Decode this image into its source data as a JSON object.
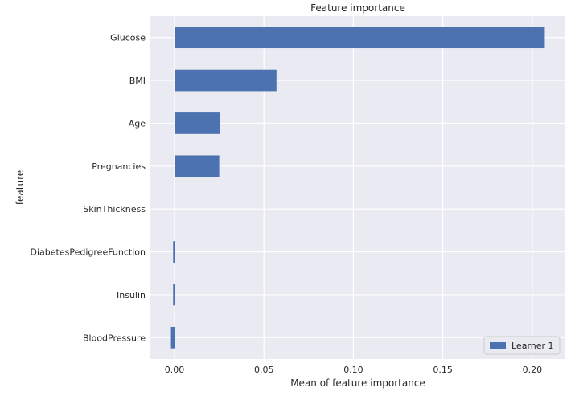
{
  "chart_data": {
    "type": "bar",
    "orientation": "horizontal",
    "title": "Feature importance",
    "xlabel": "Mean of feature importance",
    "ylabel": "feature",
    "categories": [
      "Glucose",
      "BMI",
      "Age",
      "Pregnancies",
      "SkinThickness",
      "DiabetesPedigreeFunction",
      "Insulin",
      "BloodPressure"
    ],
    "series": [
      {
        "name": "Learner 1",
        "values": [
          0.207,
          0.057,
          0.0255,
          0.025,
          0.0003,
          -0.0008,
          -0.0008,
          -0.002
        ]
      }
    ],
    "xlim": [
      -0.0135,
      0.2185
    ],
    "xticks": [
      0.0,
      0.05,
      0.1,
      0.15,
      0.2
    ],
    "xtick_labels": [
      "0.00",
      "0.05",
      "0.10",
      "0.15",
      "0.20"
    ],
    "grid": true,
    "legend_position": "bottom-right",
    "colors": {
      "bar": "#4c72b0",
      "plot_background": "#eaeaf2",
      "grid": "#ffffff",
      "text": "#262626"
    }
  }
}
